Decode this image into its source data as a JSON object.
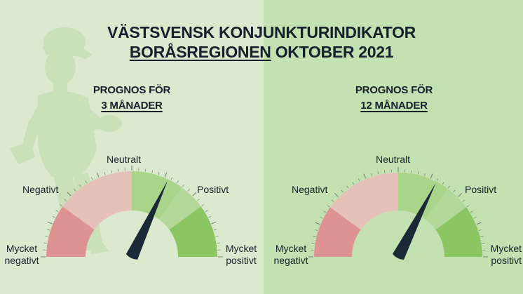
{
  "title": {
    "line1": "VÄSTSVENSK KONJUNKTURINDIKATOR",
    "region": "BORÅSREGIONEN",
    "period": "OKTOBER 2021"
  },
  "colors": {
    "background_left": "#dbe9cf",
    "background_right": "#c4e1b1",
    "segment_very_negative": "#de9393",
    "segment_negative": "#e5c2b7",
    "segment_neutral": "#a8d58a",
    "segment_positive": "#b2d99a",
    "segment_very_positive": "#8cc663",
    "needle": "#1b2836"
  },
  "gauges": [
    {
      "heading": "PROGNOS FÖR",
      "horizon": "3 MÅNADER",
      "labels": {
        "neutral": "Neutralt",
        "negative": "Negativt",
        "positive": "Positivt",
        "very_negative_1": "Mycket",
        "very_negative_2": "negativt",
        "very_positive_1": "Mycket",
        "very_positive_2": "positivt"
      },
      "needle_level": 0.64
    },
    {
      "heading": "PROGNOS FÖR",
      "horizon": "12 MÅNADER",
      "labels": {
        "neutral": "Neutralt",
        "negative": "Negativt",
        "positive": "Positivt",
        "very_negative_1": "Mycket",
        "very_negative_2": "negativt",
        "very_positive_1": "Mycket",
        "very_positive_2": "positivt"
      },
      "needle_level": 0.65
    }
  ]
}
